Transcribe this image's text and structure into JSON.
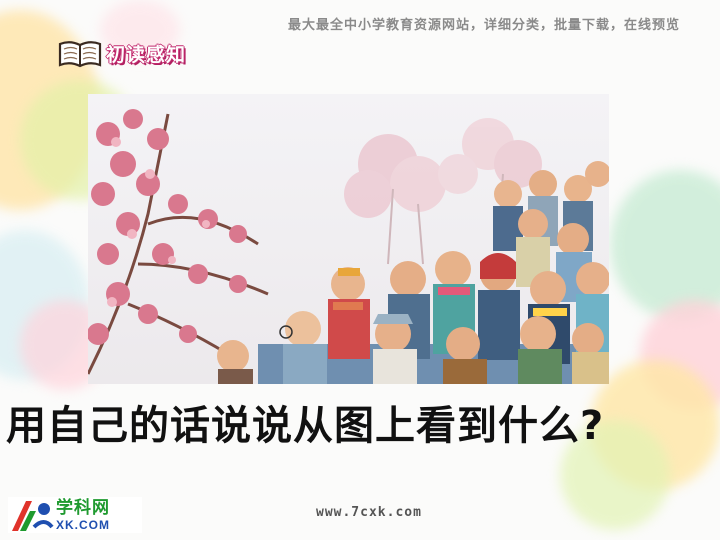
{
  "header": {
    "slogan": "最大最全中小学教育资源网站，详细分类，批量下载，在线预览"
  },
  "section": {
    "label": "初读感知",
    "icon": "open-book-icon"
  },
  "illustration": {
    "subject": "cherry-blossom-crowd-illustration"
  },
  "prompt": {
    "text": "用自己的话说说从图上看到什么?"
  },
  "logo": {
    "cn": "学科网",
    "en": "XK.COM",
    "icon": "xk-logo-icon"
  },
  "footer": {
    "website": "www.7cxk.com"
  },
  "colors": {
    "section_accent": "#c22a6e",
    "logo_green": "#1f9a2f",
    "logo_blue": "#1f4fb0"
  }
}
